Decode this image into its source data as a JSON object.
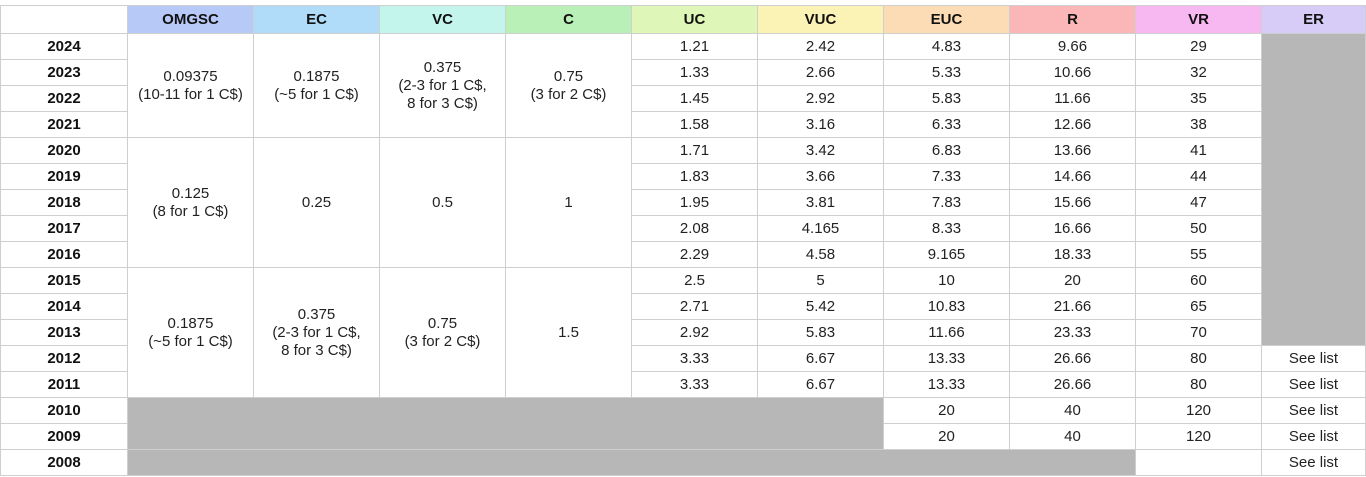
{
  "headers": [
    {
      "label": "OMGSC",
      "color": "#b7c9f7"
    },
    {
      "label": "EC",
      "color": "#b0dcfa"
    },
    {
      "label": "VC",
      "color": "#c3f5ec"
    },
    {
      "label": "C",
      "color": "#b8f0b8"
    },
    {
      "label": "UC",
      "color": "#def7b8"
    },
    {
      "label": "VUC",
      "color": "#fbf2b6"
    },
    {
      "label": "EUC",
      "color": "#fcdcb4"
    },
    {
      "label": "R",
      "color": "#fbb7b7"
    },
    {
      "label": "VR",
      "color": "#f7b7f0"
    },
    {
      "label": "ER",
      "color": "#d6ccf7"
    }
  ],
  "years": [
    "2024",
    "2023",
    "2022",
    "2021",
    "2020",
    "2019",
    "2018",
    "2017",
    "2016",
    "2015",
    "2014",
    "2013",
    "2012",
    "2011",
    "2010",
    "2009",
    "2008"
  ],
  "groups": [
    {
      "omgsc": [
        "0.09375",
        "(10-11 for 1 C$)"
      ],
      "ec": [
        "0.1875",
        "(~5 for 1 C$)"
      ],
      "vc": [
        "0.375",
        "(2-3 for 1 C$,",
        "8 for 3 C$)"
      ],
      "c": [
        "0.75",
        "(3 for 2 C$)"
      ]
    },
    {
      "omgsc": [
        "0.125",
        "(8 for 1 C$)"
      ],
      "ec": [
        "0.25"
      ],
      "vc": [
        "0.5"
      ],
      "c": [
        "1"
      ]
    },
    {
      "omgsc": [
        "0.1875",
        "(~5 for 1 C$)"
      ],
      "ec": [
        "0.375",
        "(2-3 for 1 C$,",
        "8 for 3 C$)"
      ],
      "vc": [
        "0.75",
        "(3 for 2 C$)"
      ],
      "c": [
        "1.5"
      ]
    }
  ],
  "rows": [
    {
      "uc": "1.21",
      "vuc": "2.42",
      "euc": "4.83",
      "r": "9.66",
      "vr": "29",
      "er": ""
    },
    {
      "uc": "1.33",
      "vuc": "2.66",
      "euc": "5.33",
      "r": "10.66",
      "vr": "32",
      "er": ""
    },
    {
      "uc": "1.45",
      "vuc": "2.92",
      "euc": "5.83",
      "r": "11.66",
      "vr": "35",
      "er": ""
    },
    {
      "uc": "1.58",
      "vuc": "3.16",
      "euc": "6.33",
      "r": "12.66",
      "vr": "38",
      "er": ""
    },
    {
      "uc": "1.71",
      "vuc": "3.42",
      "euc": "6.83",
      "r": "13.66",
      "vr": "41",
      "er": ""
    },
    {
      "uc": "1.83",
      "vuc": "3.66",
      "euc": "7.33",
      "r": "14.66",
      "vr": "44",
      "er": ""
    },
    {
      "uc": "1.95",
      "vuc": "3.81",
      "euc": "7.83",
      "r": "15.66",
      "vr": "47",
      "er": ""
    },
    {
      "uc": "2.08",
      "vuc": "4.165",
      "euc": "8.33",
      "r": "16.66",
      "vr": "50",
      "er": ""
    },
    {
      "uc": "2.29",
      "vuc": "4.58",
      "euc": "9.165",
      "r": "18.33",
      "vr": "55",
      "er": ""
    },
    {
      "uc": "2.5",
      "vuc": "5",
      "euc": "10",
      "r": "20",
      "vr": "60",
      "er": ""
    },
    {
      "uc": "2.71",
      "vuc": "5.42",
      "euc": "10.83",
      "r": "21.66",
      "vr": "65",
      "er": ""
    },
    {
      "uc": "2.92",
      "vuc": "5.83",
      "euc": "11.66",
      "r": "23.33",
      "vr": "70",
      "er": ""
    },
    {
      "uc": "3.33",
      "vuc": "6.67",
      "euc": "13.33",
      "r": "26.66",
      "vr": "80",
      "er": "See list"
    },
    {
      "uc": "3.33",
      "vuc": "6.67",
      "euc": "13.33",
      "r": "26.66",
      "vr": "80",
      "er": "See list"
    },
    {
      "euc": "20",
      "r": "40",
      "vr": "120",
      "er": "See list"
    },
    {
      "euc": "20",
      "r": "40",
      "vr": "120",
      "er": "See list"
    },
    {
      "vr": "",
      "er": "See list"
    }
  ],
  "colors": {
    "gray_fill": "#b7b7b7",
    "border": "#cfcfcf"
  }
}
